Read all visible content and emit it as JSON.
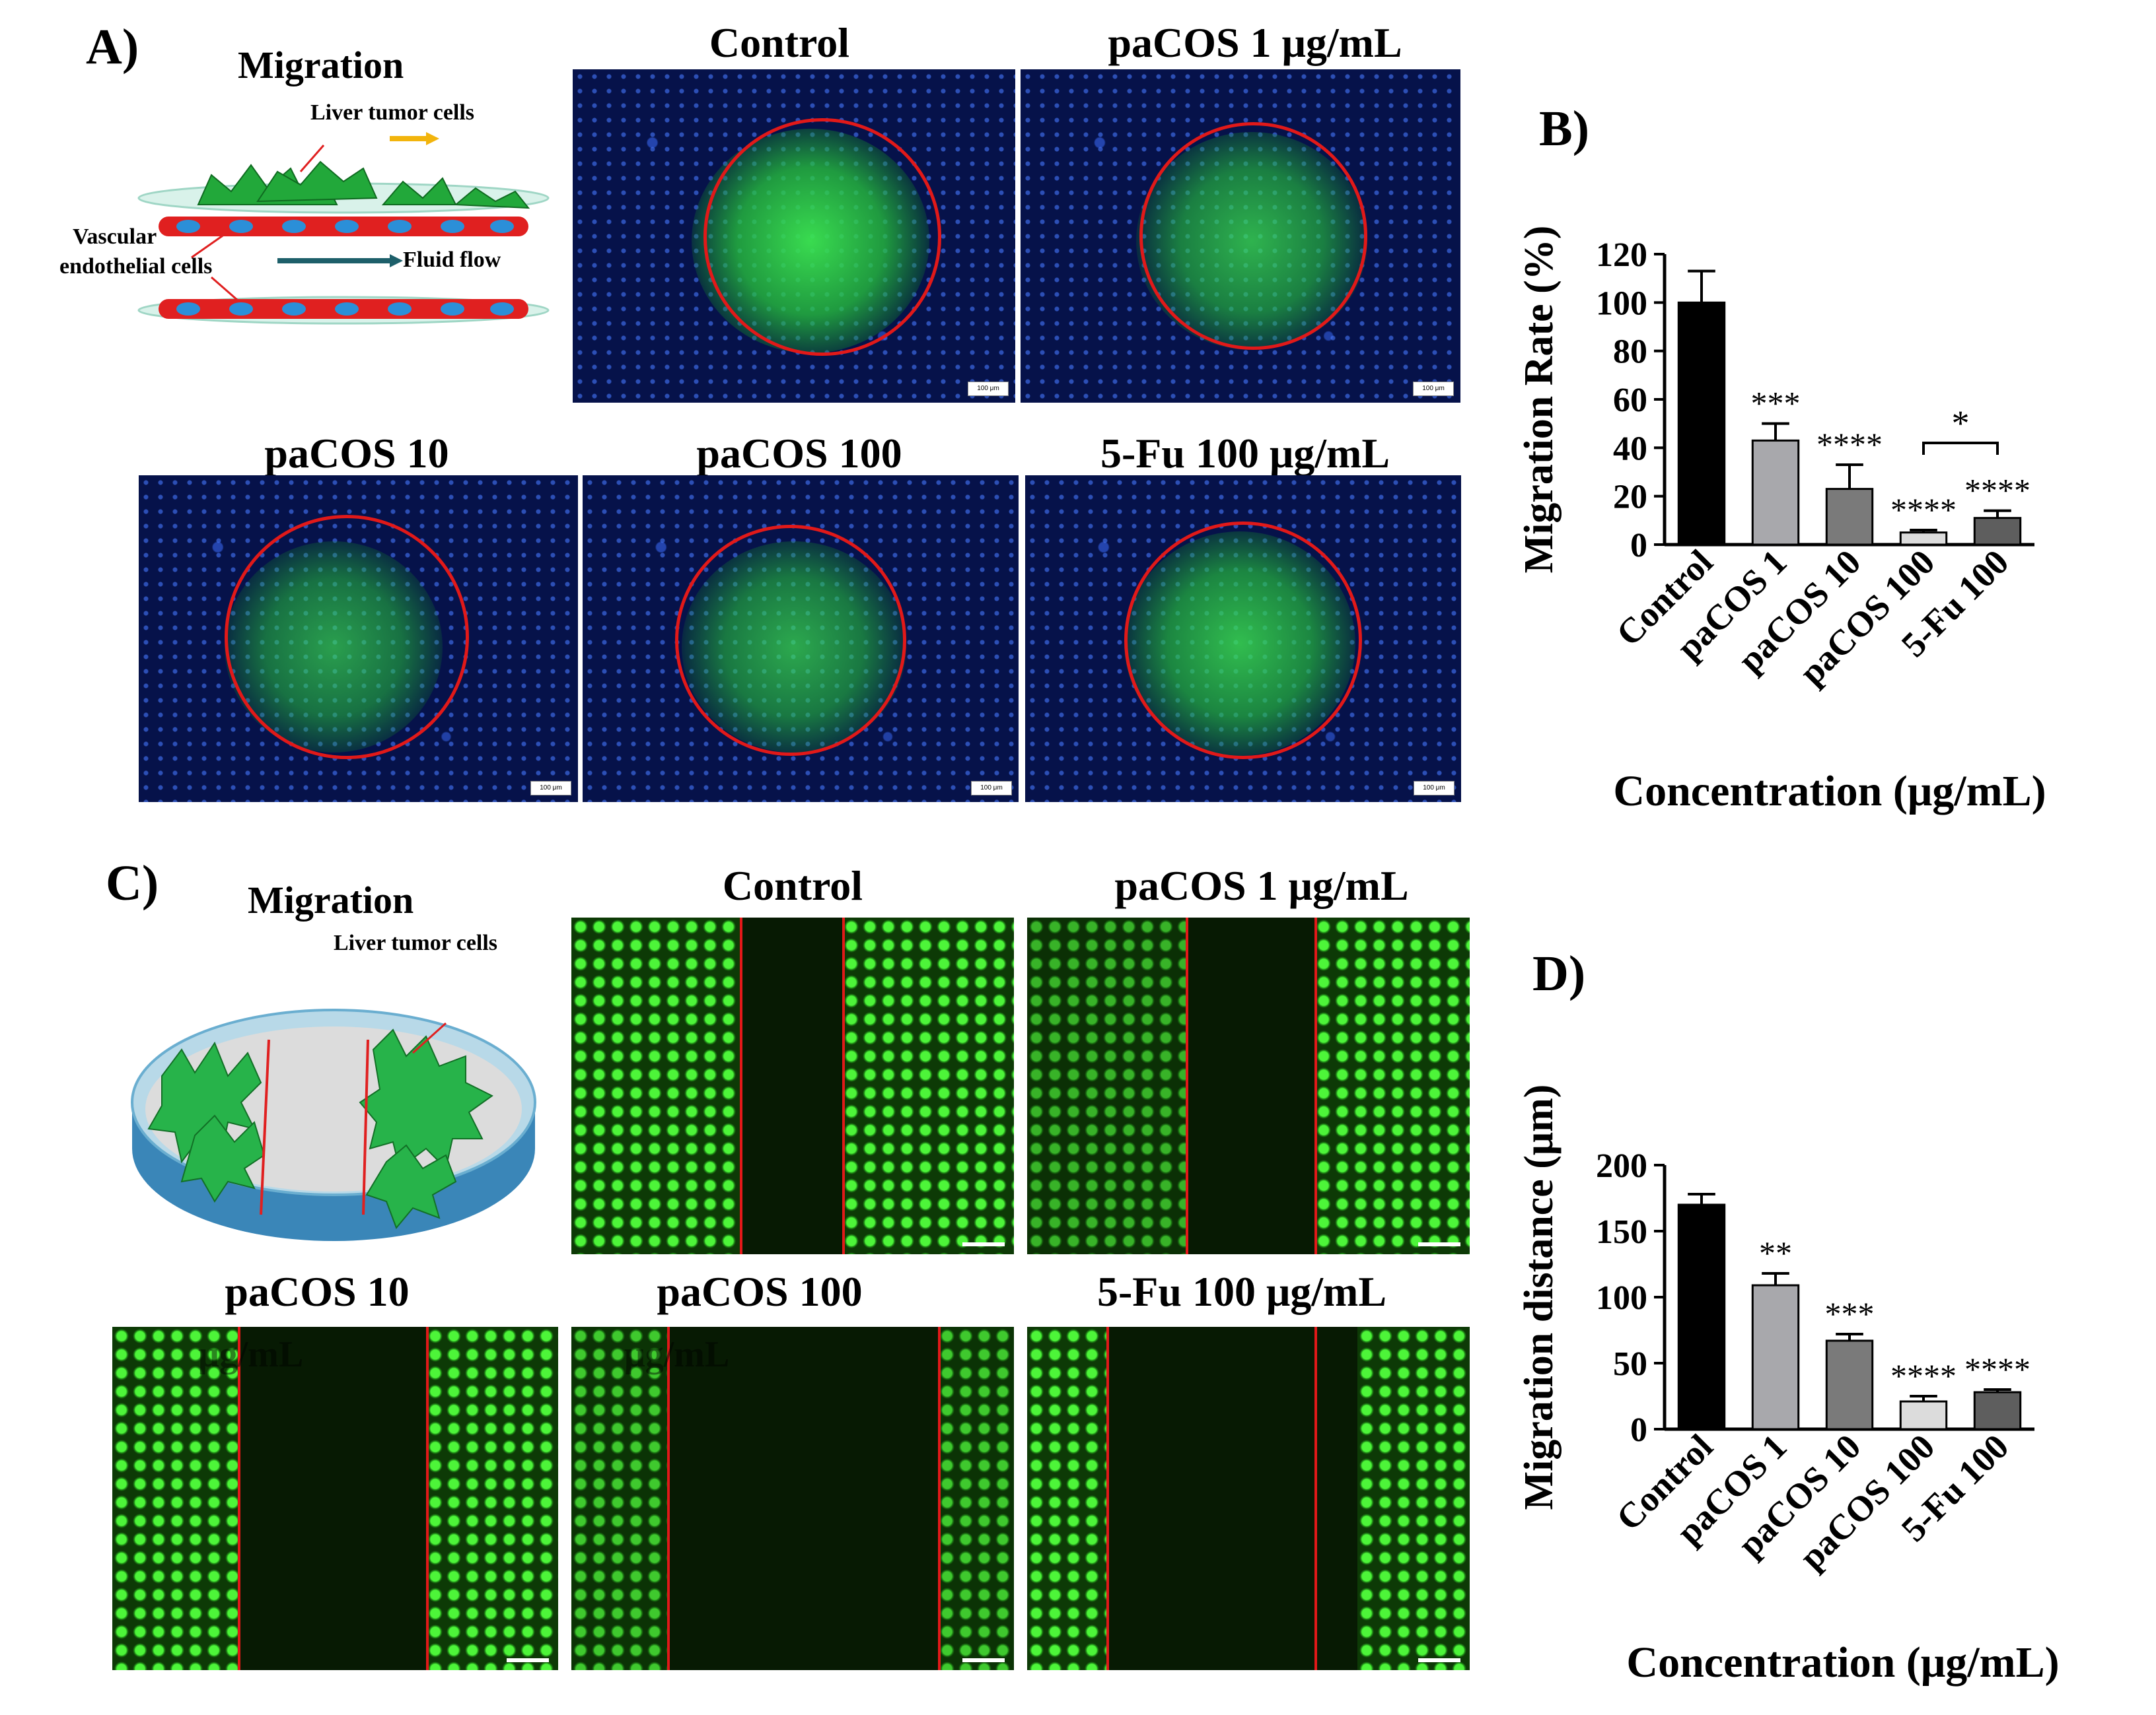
{
  "panelA": {
    "letter": "A)",
    "scheme_title": "Migration",
    "scheme_labels": {
      "tumor": "Liver tumor cells",
      "vascular_line1": "Vascular",
      "vascular_line2": "endothelial cells",
      "flow": "Fluid flow"
    },
    "images": [
      {
        "title": "Control",
        "scale": "100 μm"
      },
      {
        "title": "paCOS 1 μg/mL",
        "scale": "100 μm"
      },
      {
        "title": "paCOS 10",
        "scale": "100 μm"
      },
      {
        "title": "paCOS 100",
        "scale": "100 μm"
      },
      {
        "title": "5-Fu 100 μg/mL",
        "scale": "100 μm"
      }
    ]
  },
  "panelC": {
    "letter": "C)",
    "scheme_title": "Migration",
    "scheme_label": "Liver tumor cells",
    "images": [
      {
        "title": "Control"
      },
      {
        "title": "paCOS 1 μg/mL"
      },
      {
        "title": "paCOS 10",
        "overlay": "μg/mL"
      },
      {
        "title": "paCOS 100",
        "overlay": "μg/mL"
      },
      {
        "title": "5-Fu 100 μg/mL"
      }
    ]
  },
  "chart_data": [
    {
      "panel": "B)",
      "type": "bar",
      "categories": [
        "Control",
        "paCOS 1",
        "paCOS 10",
        "paCOS 100",
        "5-Fu 100"
      ],
      "values": [
        100,
        43,
        23,
        5,
        11
      ],
      "errors": [
        13,
        7,
        10,
        1,
        3
      ],
      "significance": [
        "",
        "***",
        "****",
        "****",
        "****"
      ],
      "bracket": {
        "from": 3,
        "to": 4,
        "label": "*"
      },
      "colors": [
        "#000000",
        "#a8a8ac",
        "#7a7a7a",
        "#dcdcdc",
        "#5e5e5e"
      ],
      "ylabel": "Migration Rate (%)",
      "xlabel": "Concentration (μg/mL)",
      "ylim": [
        0,
        120
      ],
      "yticks": [
        0,
        20,
        40,
        60,
        80,
        100,
        120
      ]
    },
    {
      "panel": "D)",
      "type": "bar",
      "categories": [
        "Control",
        "paCOS 1",
        "paCOS 10",
        "paCOS 100",
        "5-Fu 100"
      ],
      "values": [
        170,
        109,
        67,
        21,
        28
      ],
      "errors": [
        8,
        9,
        5,
        4,
        2
      ],
      "significance": [
        "",
        "**",
        "***",
        "****",
        "****"
      ],
      "colors": [
        "#000000",
        "#a8a8ac",
        "#7a7a7a",
        "#dcdcdc",
        "#5e5e5e"
      ],
      "ylabel": "Migration distance (μm)",
      "xlabel": "Concentration (μg/mL)",
      "ylim": [
        0,
        200
      ],
      "yticks": [
        0,
        50,
        100,
        150,
        200
      ]
    }
  ]
}
